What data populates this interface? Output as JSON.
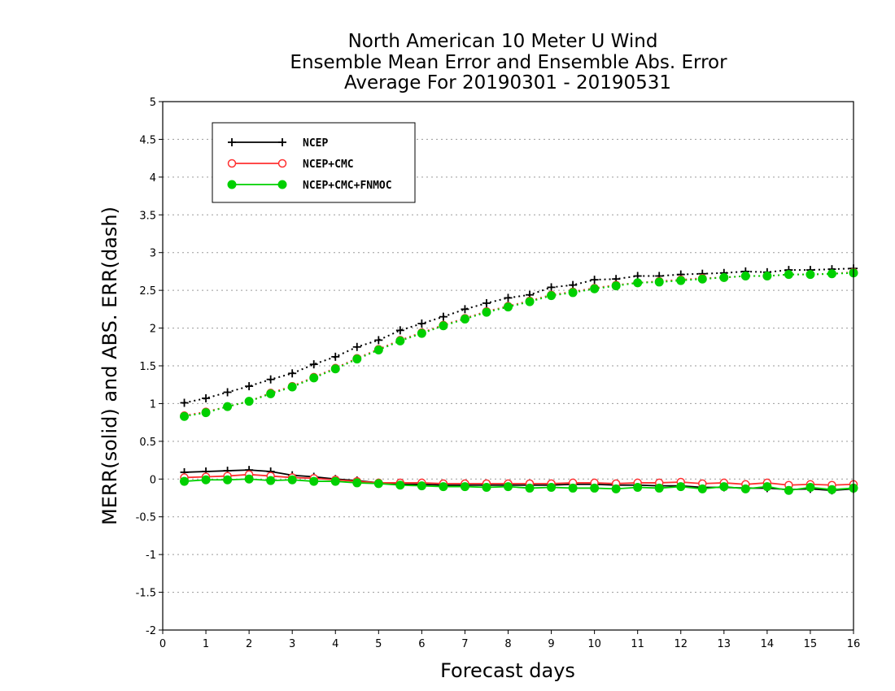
{
  "chart_data": {
    "type": "line",
    "title_lines": [
      "North American 10 Meter U Wind",
      "Ensemble Mean Error and Ensemble Abs. Error",
      "Average For 20190301 - 20190531"
    ],
    "xlabel": "Forecast days",
    "ylabel": "MERR(solid) and ABS. ERR(dash)",
    "xlim": [
      0,
      16
    ],
    "ylim": [
      -2,
      5
    ],
    "x_ticks": [
      "0",
      "1",
      "2",
      "3",
      "4",
      "5",
      "6",
      "7",
      "8",
      "9",
      "10",
      "11",
      "12",
      "13",
      "14",
      "15",
      "16"
    ],
    "y_ticks": [
      "5",
      "4.5",
      "4",
      "3.5",
      "3",
      "2.5",
      "2",
      "1.5",
      "1",
      "0.5",
      "0",
      "-0.5",
      "-1",
      "-1.5",
      "-2"
    ],
    "y_tick_values": [
      5,
      4.5,
      4,
      3.5,
      3,
      2.5,
      2,
      1.5,
      1,
      0.5,
      0,
      -0.5,
      -1,
      -1.5,
      -2
    ],
    "grid": true,
    "legend_position": "top-left",
    "legend": [
      {
        "label": "NCEP",
        "color": "#000000",
        "marker": "plus"
      },
      {
        "label": "NCEP+CMC",
        "color": "#ff3030",
        "marker": "open-circle"
      },
      {
        "label": "NCEP+CMC+FNMOC",
        "color": "#00d000",
        "marker": "filled-circle"
      }
    ],
    "x": [
      0.5,
      1,
      1.5,
      2,
      2.5,
      3,
      3.5,
      4,
      4.5,
      5,
      5.5,
      6,
      6.5,
      7,
      7.5,
      8,
      8.5,
      9,
      9.5,
      10,
      10.5,
      11,
      11.5,
      12,
      12.5,
      13,
      13.5,
      14,
      14.5,
      15,
      15.5,
      16
    ],
    "series": [
      {
        "name": "NCEP",
        "style": "solid",
        "color": "#000000",
        "marker": "plus",
        "values": [
          0.09,
          0.1,
          0.11,
          0.12,
          0.1,
          0.05,
          0.03,
          0.0,
          -0.02,
          -0.05,
          -0.07,
          -0.07,
          -0.08,
          -0.08,
          -0.08,
          -0.08,
          -0.08,
          -0.08,
          -0.07,
          -0.07,
          -0.08,
          -0.08,
          -0.09,
          -0.09,
          -0.11,
          -0.11,
          -0.12,
          -0.12,
          -0.14,
          -0.13,
          -0.15,
          -0.13
        ]
      },
      {
        "name": "NCEP+CMC",
        "style": "solid",
        "color": "#ff3030",
        "marker": "open-circle",
        "values": [
          0.02,
          0.03,
          0.04,
          0.06,
          0.04,
          0.02,
          0.01,
          -0.01,
          -0.03,
          -0.05,
          -0.05,
          -0.05,
          -0.06,
          -0.06,
          -0.06,
          -0.06,
          -0.06,
          -0.06,
          -0.05,
          -0.05,
          -0.06,
          -0.05,
          -0.05,
          -0.04,
          -0.06,
          -0.05,
          -0.07,
          -0.05,
          -0.08,
          -0.07,
          -0.08,
          -0.07
        ]
      },
      {
        "name": "NCEP+CMC+FNMOC",
        "style": "solid",
        "color": "#00d000",
        "marker": "filled-circle",
        "values": [
          -0.03,
          -0.01,
          -0.01,
          0.0,
          -0.02,
          -0.01,
          -0.03,
          -0.03,
          -0.05,
          -0.06,
          -0.08,
          -0.09,
          -0.1,
          -0.1,
          -0.11,
          -0.1,
          -0.12,
          -0.11,
          -0.12,
          -0.12,
          -0.13,
          -0.11,
          -0.12,
          -0.1,
          -0.13,
          -0.1,
          -0.13,
          -0.1,
          -0.15,
          -0.11,
          -0.14,
          -0.12
        ]
      },
      {
        "name": "NCEP",
        "style": "dash",
        "color": "#000000",
        "marker": "plus",
        "values": [
          1.01,
          1.07,
          1.15,
          1.23,
          1.32,
          1.4,
          1.52,
          1.62,
          1.75,
          1.84,
          1.97,
          2.06,
          2.15,
          2.25,
          2.33,
          2.4,
          2.44,
          2.54,
          2.57,
          2.64,
          2.65,
          2.69,
          2.69,
          2.71,
          2.72,
          2.73,
          2.75,
          2.74,
          2.77,
          2.77,
          2.78,
          2.79
        ]
      },
      {
        "name": "NCEP+CMC",
        "style": "dash",
        "color": "#ff3030",
        "marker": "open-circle",
        "values": [
          0.84,
          0.89,
          0.96,
          1.03,
          1.14,
          1.23,
          1.35,
          1.47,
          1.6,
          1.72,
          1.84,
          1.94,
          2.04,
          2.13,
          2.22,
          2.29,
          2.36,
          2.44,
          2.48,
          2.53,
          2.57,
          2.6,
          2.62,
          2.64,
          2.66,
          2.67,
          2.69,
          2.69,
          2.71,
          2.71,
          2.72,
          2.74
        ]
      },
      {
        "name": "NCEP+CMC+FNMOC",
        "style": "dash",
        "color": "#00d000",
        "marker": "filled-circle",
        "values": [
          0.83,
          0.88,
          0.96,
          1.03,
          1.13,
          1.22,
          1.34,
          1.46,
          1.59,
          1.71,
          1.83,
          1.93,
          2.03,
          2.12,
          2.21,
          2.28,
          2.35,
          2.43,
          2.47,
          2.52,
          2.56,
          2.6,
          2.61,
          2.63,
          2.65,
          2.67,
          2.69,
          2.69,
          2.71,
          2.71,
          2.72,
          2.73
        ]
      }
    ]
  }
}
